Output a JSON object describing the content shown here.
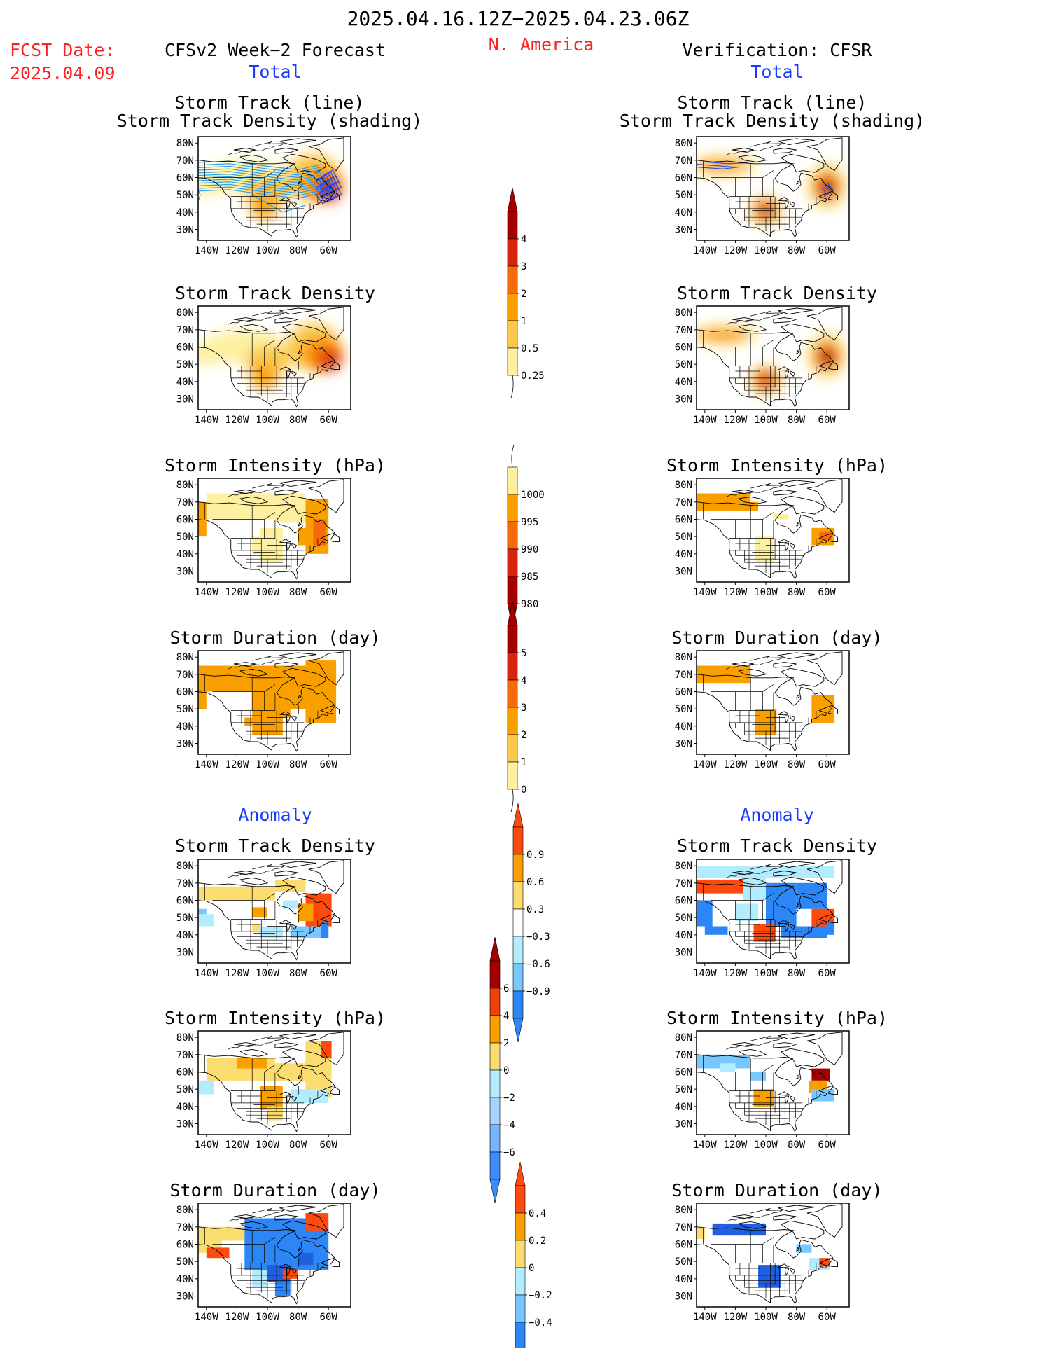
{
  "header": {
    "date_range": "2025.04.16.12Z−2025.04.23.06Z",
    "region": "N. America",
    "fcst_label": "FCST Date:",
    "fcst_date": "2025.04.09",
    "left_title": "CFSv2 Week−2 Forecast",
    "right_title": "Verification: CFSR",
    "total_label": "Total",
    "anomaly_label": "Anomaly"
  },
  "panel_titles": {
    "track_line": "Storm Track (line)",
    "track_density_shading": "Storm Track Density (shading)",
    "track_density": "Storm Track Density",
    "intensity": "Storm Intensity (hPa)",
    "duration": "Storm Duration (day)"
  },
  "axes": {
    "lat_ticks": [
      "80N",
      "70N",
      "60N",
      "50N",
      "40N",
      "30N"
    ],
    "lon_ticks": [
      "140W",
      "120W",
      "100W",
      "80W",
      "60W"
    ]
  },
  "colorbars": {
    "density": {
      "labels": [
        "4",
        "3",
        "2",
        "1",
        "0.5",
        "0.25"
      ],
      "colors": [
        "#a50000",
        "#d8260e",
        "#f56a0c",
        "#f9a000",
        "#fbc84a",
        "#fdf0a0"
      ]
    },
    "intensity": {
      "labels": [
        "1000",
        "995",
        "990",
        "985",
        "980"
      ],
      "colors": [
        "#fdf0a0",
        "#f9a000",
        "#f56a0c",
        "#d8260e",
        "#a50000"
      ]
    },
    "duration": {
      "labels": [
        "5",
        "4",
        "3",
        "2",
        "1",
        "0"
      ],
      "colors": [
        "#a50000",
        "#d8260e",
        "#f56a0c",
        "#f9a000",
        "#fbc84a",
        "#fdf0a0"
      ]
    },
    "anom_density": {
      "labels": [
        "0.9",
        "0.6",
        "0.3",
        "−0.3",
        "−0.6",
        "−0.9"
      ],
      "colors": [
        "#ff4a0e",
        "#f9a000",
        "#fbdc6e",
        "#ffffff",
        "#b4ecff",
        "#78c8ff",
        "#2c86f5"
      ]
    },
    "anom_intensity": {
      "labels": [
        "6",
        "4",
        "2",
        "0",
        "−2",
        "−4",
        "−6"
      ],
      "colors": [
        "#a50000",
        "#f0400c",
        "#f9a000",
        "#fbdc6e",
        "#b4ecff",
        "#a8d2ff",
        "#78b4ff",
        "#3c8cff"
      ]
    },
    "anom_duration": {
      "labels": [
        "0.4",
        "0.2",
        "0",
        "−0.2",
        "−0.4"
      ],
      "colors": [
        "#ff4a0e",
        "#f9a000",
        "#fbdc6e",
        "#b4ecff",
        "#78c8ff",
        "#2c86f5"
      ]
    }
  },
  "palette": {
    "track_line": "#2a9df4",
    "track_dense": "#2b4de0",
    "water_blue": "#1a3cff",
    "title_red": "#ff2020"
  }
}
